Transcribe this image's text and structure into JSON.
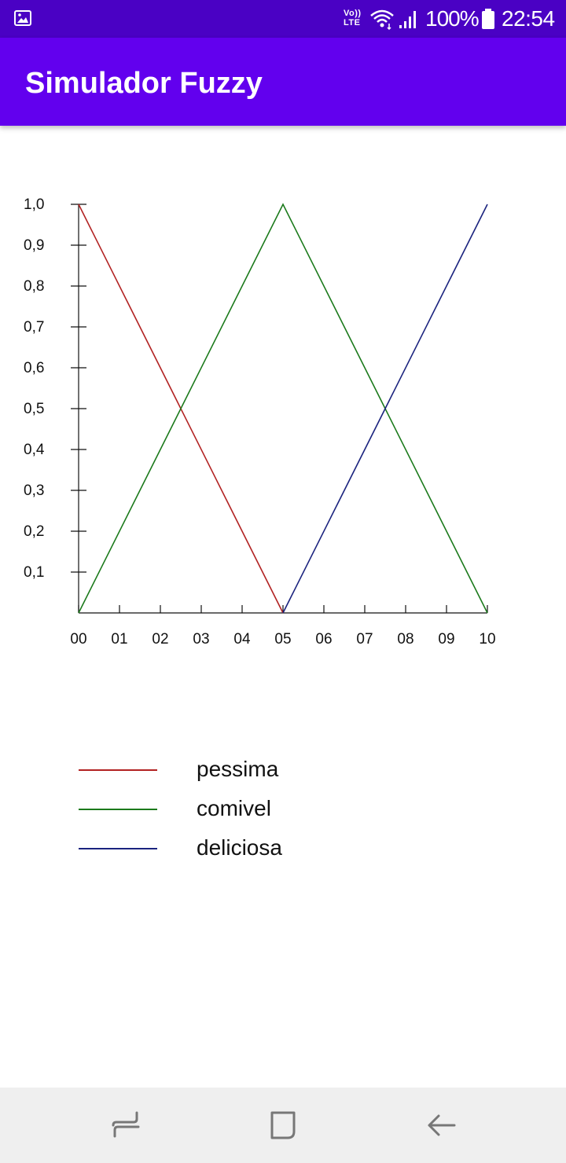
{
  "status_bar": {
    "network_line1": "Vo))",
    "network_line2": "LTE",
    "battery": "100%",
    "time": "22:54",
    "icons": [
      "gallery-icon",
      "wifi-icon",
      "signal-icon",
      "battery-icon"
    ]
  },
  "app_bar": {
    "title": "Simulador Fuzzy"
  },
  "chart_data": {
    "type": "line",
    "x": [
      0,
      1,
      2,
      3,
      4,
      5,
      6,
      7,
      8,
      9,
      10
    ],
    "x_tick_labels": [
      "00",
      "01",
      "02",
      "03",
      "04",
      "05",
      "06",
      "07",
      "08",
      "09",
      "10"
    ],
    "y_ticks": [
      0.1,
      0.2,
      0.3,
      0.4,
      0.5,
      0.6,
      0.7,
      0.8,
      0.9,
      1.0
    ],
    "y_tick_labels": [
      "0,1",
      "0,2",
      "0,3",
      "0,4",
      "0,5",
      "0,6",
      "0,7",
      "0,8",
      "0,9",
      "1,0"
    ],
    "xlim": [
      0,
      10
    ],
    "ylim": [
      0,
      1
    ],
    "grid": false,
    "legend_position": "bottom",
    "series": [
      {
        "name": "pessima",
        "color": "#b22222",
        "points": [
          [
            0,
            1
          ],
          [
            5,
            0
          ]
        ]
      },
      {
        "name": "comivel",
        "color": "#1b7a1b",
        "points": [
          [
            0,
            0
          ],
          [
            5,
            1
          ],
          [
            10,
            0
          ]
        ]
      },
      {
        "name": "deliciosa",
        "color": "#1a237e",
        "points": [
          [
            5,
            0
          ],
          [
            10,
            1
          ]
        ]
      }
    ]
  },
  "nav_bar": {
    "buttons": [
      "recent-apps-icon",
      "home-icon",
      "back-icon"
    ]
  }
}
